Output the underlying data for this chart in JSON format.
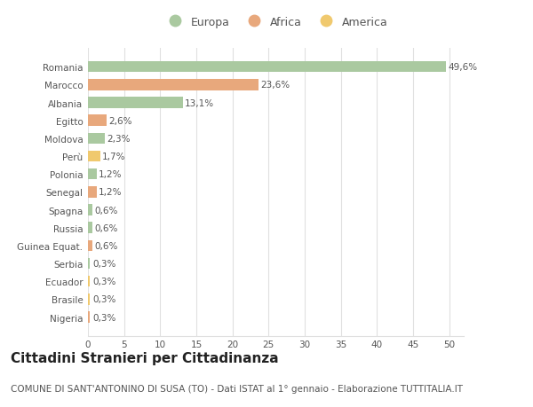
{
  "categories": [
    "Nigeria",
    "Brasile",
    "Ecuador",
    "Serbia",
    "Guinea Equat.",
    "Russia",
    "Spagna",
    "Senegal",
    "Polonia",
    "Perù",
    "Moldova",
    "Egitto",
    "Albania",
    "Marocco",
    "Romania"
  ],
  "values": [
    0.3,
    0.3,
    0.3,
    0.3,
    0.6,
    0.6,
    0.6,
    1.2,
    1.2,
    1.7,
    2.3,
    2.6,
    13.1,
    23.6,
    49.6
  ],
  "labels": [
    "0,3%",
    "0,3%",
    "0,3%",
    "0,3%",
    "0,6%",
    "0,6%",
    "0,6%",
    "1,2%",
    "1,2%",
    "1,7%",
    "2,3%",
    "2,6%",
    "13,1%",
    "23,6%",
    "49,6%"
  ],
  "continent": [
    "Africa",
    "America",
    "America",
    "Europa",
    "Africa",
    "Europa",
    "Europa",
    "Africa",
    "Europa",
    "America",
    "Europa",
    "Africa",
    "Europa",
    "Africa",
    "Europa"
  ],
  "colors": {
    "Europa": "#aac9a0",
    "Africa": "#e8a87c",
    "America": "#f0c96e"
  },
  "legend_order": [
    "Europa",
    "Africa",
    "America"
  ],
  "legend_colors": [
    "#aac9a0",
    "#e8a87c",
    "#f0c96e"
  ],
  "title": "Cittadini Stranieri per Cittadinanza",
  "subtitle": "COMUNE DI SANT'ANTONINO DI SUSA (TO) - Dati ISTAT al 1° gennaio - Elaborazione TUTTITALIA.IT",
  "xlim": [
    0,
    52
  ],
  "xticks": [
    0,
    5,
    10,
    15,
    20,
    25,
    30,
    35,
    40,
    45,
    50
  ],
  "background_color": "#ffffff",
  "grid_color": "#e0e0e0",
  "bar_height": 0.62,
  "title_fontsize": 11,
  "subtitle_fontsize": 7.5,
  "label_fontsize": 7.5,
  "tick_fontsize": 7.5,
  "ylabel_color": "#555555",
  "label_color": "#555555"
}
